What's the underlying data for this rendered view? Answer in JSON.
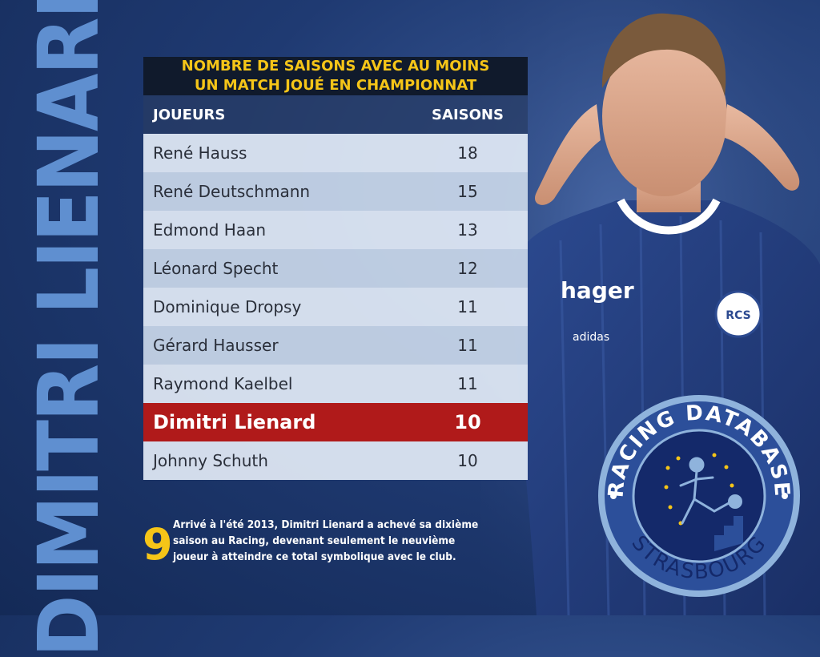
{
  "side_title": "DIMITRI LIENARD",
  "table": {
    "title_line1": "NOMBRE DE SAISONS AVEC AU MOINS",
    "title_line2": "UN MATCH JOUÉ EN CHAMPIONNAT",
    "col_players": "JOUEURS",
    "col_seasons": "SAISONS",
    "rows": [
      {
        "name": "René Hauss",
        "seasons": "18"
      },
      {
        "name": "René Deutschmann",
        "seasons": "15"
      },
      {
        "name": "Edmond Haan",
        "seasons": "13"
      },
      {
        "name": "Léonard Specht",
        "seasons": "12"
      },
      {
        "name": "Dominique Dropsy",
        "seasons": "11"
      },
      {
        "name": "Gérard Hausser",
        "seasons": "11"
      },
      {
        "name": "Raymond Kaelbel",
        "seasons": "11"
      },
      {
        "name": "Dimitri Lienard",
        "seasons": "10"
      },
      {
        "name": "Johnny Schuth",
        "seasons": "10"
      }
    ],
    "highlight_color": "#b01a1a"
  },
  "note": {
    "number": "9",
    "line1": "Arrivé à l'été 2013, Dimitri Lienard a achevé sa dixième",
    "line2": "saison au Racing, devenant seulement le neuvième",
    "line3": "joueur à atteindre ce total symbolique avec le club."
  },
  "photo": {
    "sponsor": "hager",
    "brand": "adidas",
    "crest": "RCS"
  },
  "logo": {
    "top_text": "RACING DATABASE",
    "bottom_text": "STRASBOURG"
  },
  "colors": {
    "accent_yellow": "#f5c518",
    "side_title": "#5f8fd0",
    "background": "#1f3a72"
  }
}
